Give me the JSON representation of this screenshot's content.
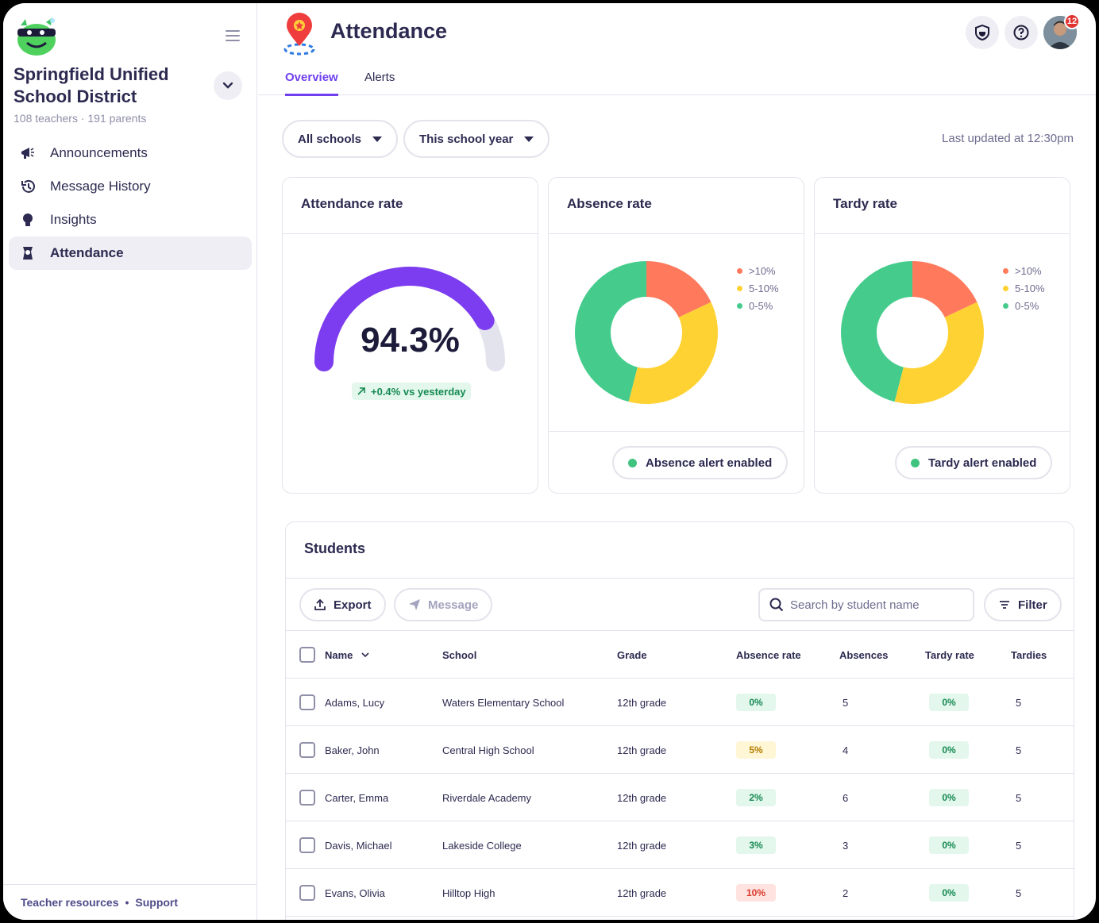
{
  "sidebar": {
    "district_name": "Springfield Unified School District",
    "district_sub": "108 teachers · 191 parents",
    "items": [
      {
        "label": "Announcements",
        "icon": "megaphone-icon"
      },
      {
        "label": "Message History",
        "icon": "history-icon"
      },
      {
        "label": "Insights",
        "icon": "lightbulb-icon"
      },
      {
        "label": "Attendance",
        "icon": "attendance-icon",
        "active": true
      }
    ],
    "footer": {
      "resources": "Teacher resources",
      "separator": "•",
      "support": "Support"
    }
  },
  "header": {
    "title": "Attendance",
    "notification_count": "12",
    "tabs": [
      {
        "label": "Overview",
        "active": true
      },
      {
        "label": "Alerts"
      }
    ]
  },
  "filters": {
    "schools": "All schools",
    "period": "This school year",
    "last_updated": "Last updated at 12:30pm"
  },
  "cards": {
    "attendance": {
      "title": "Attendance rate",
      "value": "94.3%",
      "gauge_fraction": 0.84,
      "delta": "+0.4% vs yesterday"
    },
    "absence": {
      "title": "Absence rate",
      "alert": "Absence alert enabled"
    },
    "tardy": {
      "title": "Tardy rate",
      "alert": "Tardy alert enabled"
    },
    "legend": [
      {
        "label": ">10%",
        "color": "#ff7a5c"
      },
      {
        "label": "5-10%",
        "color": "#ffd233"
      },
      {
        "label": "0-5%",
        "color": "#45cc8c"
      }
    ]
  },
  "chart_data": [
    {
      "type": "pie",
      "title": "Absence rate",
      "categories": [
        ">10%",
        "5-10%",
        "0-5%"
      ],
      "values": [
        18,
        36,
        46
      ],
      "colors": [
        "#ff7a5c",
        "#ffd233",
        "#45cc8c"
      ]
    },
    {
      "type": "pie",
      "title": "Tardy rate",
      "categories": [
        ">10%",
        "5-10%",
        "0-5%"
      ],
      "values": [
        18,
        36,
        46
      ],
      "colors": [
        "#ff7a5c",
        "#ffd233",
        "#45cc8c"
      ]
    }
  ],
  "students": {
    "title": "Students",
    "export_label": "Export",
    "message_label": "Message",
    "search_placeholder": "Search by student name",
    "filter_label": "Filter",
    "columns": [
      "Name",
      "School",
      "Grade",
      "Absence rate",
      "Absences",
      "Tardy rate",
      "Tardies"
    ],
    "rows": [
      {
        "name": "Adams, Lucy",
        "school": "Waters Elementary School",
        "grade": "12th grade",
        "absence_rate": "0%",
        "absence_level": "green",
        "absences": "5",
        "tardy_rate": "0%",
        "tardy_level": "green",
        "tardies": "5"
      },
      {
        "name": "Baker, John",
        "school": "Central High School",
        "grade": "12th grade",
        "absence_rate": "5%",
        "absence_level": "yellow",
        "absences": "4",
        "tardy_rate": "0%",
        "tardy_level": "green",
        "tardies": "5"
      },
      {
        "name": "Carter, Emma",
        "school": "Riverdale Academy",
        "grade": "12th grade",
        "absence_rate": "2%",
        "absence_level": "green",
        "absences": "6",
        "tardy_rate": "0%",
        "tardy_level": "green",
        "tardies": "5"
      },
      {
        "name": "Davis, Michael",
        "school": "Lakeside College",
        "grade": "12th grade",
        "absence_rate": "3%",
        "absence_level": "green",
        "absences": "3",
        "tardy_rate": "0%",
        "tardy_level": "green",
        "tardies": "5"
      },
      {
        "name": "Evans, Olivia",
        "school": "Hilltop High",
        "grade": "12th grade",
        "absence_rate": "10%",
        "absence_level": "red",
        "absences": "2",
        "tardy_rate": "0%",
        "tardy_level": "green",
        "tardies": "5"
      }
    ]
  }
}
